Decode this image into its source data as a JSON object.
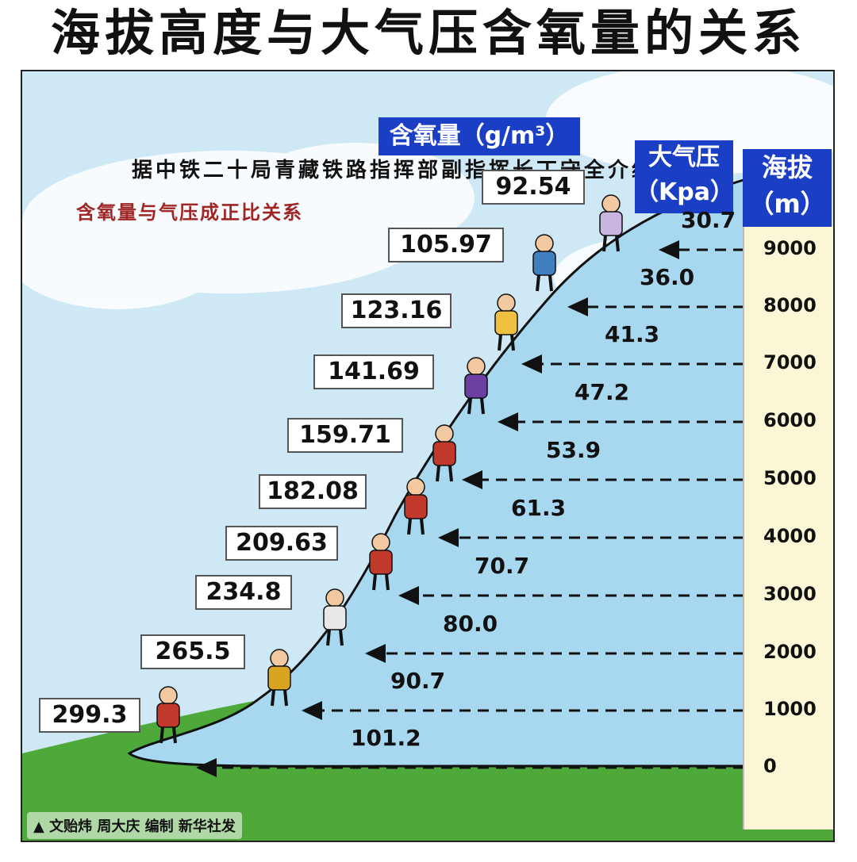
{
  "title": "海拔高度与大气压含氧量的关系",
  "source": "据中铁二十局青藏铁路指挥部副指挥长丁守全介绍：",
  "note": "含氧量与气压成正比关系",
  "headers": {
    "oxygen": "含氧量（g/m³）",
    "pressure_line1": "大气压",
    "pressure_line2": "（Kpa）",
    "altitude_line1": "海拔",
    "altitude_line2": "（m）"
  },
  "rows": [
    {
      "altitude": "0",
      "pressure": "101.2",
      "oxygen": "299.3"
    },
    {
      "altitude": "1000",
      "pressure": "90.7",
      "oxygen": "265.5"
    },
    {
      "altitude": "2000",
      "pressure": "80.0",
      "oxygen": "234.8"
    },
    {
      "altitude": "3000",
      "pressure": "70.7",
      "oxygen": "209.63"
    },
    {
      "altitude": "4000",
      "pressure": "61.3",
      "oxygen": "182.08"
    },
    {
      "altitude": "5000",
      "pressure": "53.9",
      "oxygen": "159.71"
    },
    {
      "altitude": "6000",
      "pressure": "47.2",
      "oxygen": "141.69"
    },
    {
      "altitude": "7000",
      "pressure": "41.3",
      "oxygen": "123.16"
    },
    {
      "altitude": "8000",
      "pressure": "36.0",
      "oxygen": "105.97"
    },
    {
      "altitude": "9000",
      "pressure": "30.7",
      "oxygen": "92.54"
    }
  ],
  "credit": "文贻炜 周大庆 编制 新华社发",
  "colors": {
    "sky": "#cfe8f6",
    "mountain": "#a8d8f0",
    "ground": "#4fa83a",
    "header_blue": "#1a3fc4",
    "altitude_column": "#fbf6d6",
    "note_red": "#a02626"
  }
}
